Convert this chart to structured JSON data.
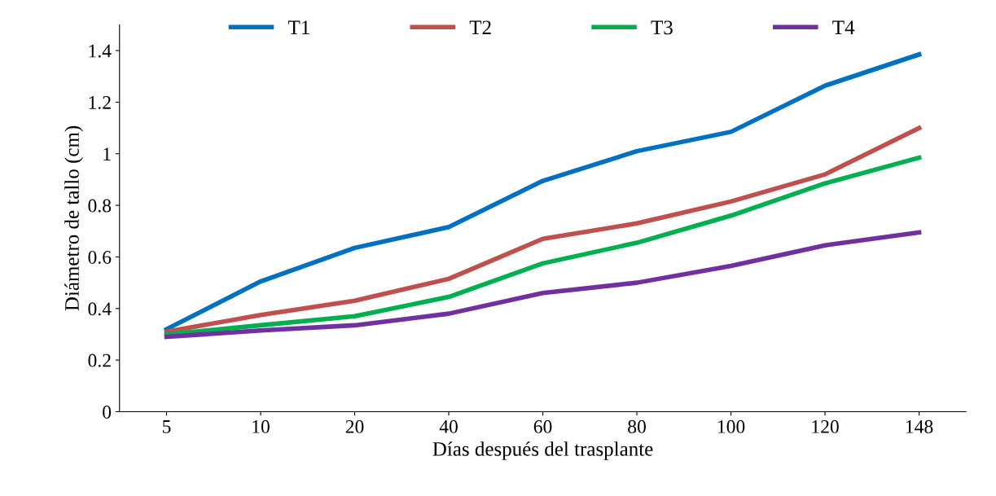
{
  "chart_data": {
    "type": "line",
    "xlabel": "Días después del trasplante",
    "ylabel": "Diámetro de tallo (cm)",
    "categories": [
      "5",
      "10",
      "20",
      "40",
      "60",
      "80",
      "100",
      "120",
      "148"
    ],
    "series": [
      {
        "name": "T1",
        "color": "#0070c0",
        "values": [
          0.32,
          0.505,
          0.635,
          0.716,
          0.895,
          1.01,
          1.085,
          1.264,
          1.385
        ]
      },
      {
        "name": "T2",
        "color": "#c0504d",
        "values": [
          0.31,
          0.375,
          0.43,
          0.515,
          0.67,
          0.73,
          0.815,
          0.92,
          1.1
        ]
      },
      {
        "name": "T3",
        "color": "#00b050",
        "values": [
          0.3,
          0.335,
          0.37,
          0.445,
          0.575,
          0.655,
          0.76,
          0.885,
          0.985
        ]
      },
      {
        "name": "T4",
        "color": "#7030a0",
        "values": [
          0.29,
          0.315,
          0.335,
          0.38,
          0.46,
          0.5,
          0.565,
          0.645,
          0.695
        ]
      }
    ],
    "ylim": [
      0,
      1.5
    ],
    "yticks": [
      0,
      0.2,
      0.4,
      0.6,
      0.8,
      1,
      1.2,
      1.4
    ],
    "grid": false,
    "legend": "top",
    "marker": "none",
    "line_style": "solid"
  }
}
